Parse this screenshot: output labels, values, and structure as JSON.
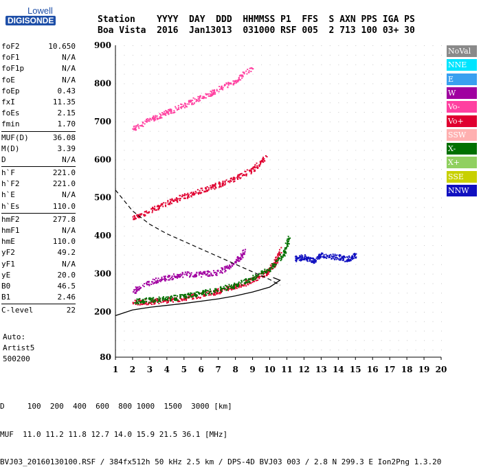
{
  "logo": {
    "line1": "Lowell",
    "line2": "DIGISONDE"
  },
  "header": {
    "labels": [
      "Station",
      "YYYY",
      "DAY",
      "DDD",
      "HHMMSS",
      "P1",
      "FFS",
      "S",
      "AXN",
      "PPS",
      "IGA",
      "PS"
    ],
    "values": [
      "Boa Vista",
      "2016",
      "Jan13",
      "013",
      "031000",
      "RSF",
      "005",
      "2",
      "713",
      "100",
      "03+",
      "30"
    ]
  },
  "params": [
    {
      "name": "foF2",
      "value": "10.650"
    },
    {
      "name": "foF1",
      "value": "N/A"
    },
    {
      "name": "foF1p",
      "value": "N/A"
    },
    {
      "name": "foE",
      "value": "N/A"
    },
    {
      "name": "foEp",
      "value": "0.43"
    },
    {
      "name": "fxI",
      "value": "11.35"
    },
    {
      "name": "foEs",
      "value": "2.15"
    },
    {
      "name": "fmin",
      "value": "1.70"
    },
    {
      "sep": true
    },
    {
      "name": "MUF(D)",
      "value": "36.08"
    },
    {
      "name": "M(D)",
      "value": "3.39"
    },
    {
      "name": "D",
      "value": "N/A"
    },
    {
      "sep": true
    },
    {
      "name": "h`F",
      "value": "221.0"
    },
    {
      "name": "h`F2",
      "value": "221.0"
    },
    {
      "name": "h`E",
      "value": "N/A"
    },
    {
      "name": "h`Es",
      "value": "110.0"
    },
    {
      "sep": true
    },
    {
      "name": "hmF2",
      "value": "277.8"
    },
    {
      "name": "hmF1",
      "value": "N/A"
    },
    {
      "name": "hmE",
      "value": "110.0"
    },
    {
      "name": "yF2",
      "value": "49.2"
    },
    {
      "name": "yF1",
      "value": "N/A"
    },
    {
      "name": "yE",
      "value": "20.0"
    },
    {
      "name": "B0",
      "value": "46.5"
    },
    {
      "name": "B1",
      "value": "2.46"
    },
    {
      "sep": true
    },
    {
      "name": "C-level",
      "value": "22"
    }
  ],
  "autoscaling": {
    "line1": "Auto:",
    "line2": "Artist5",
    "line3": "500200"
  },
  "footer": {
    "d_row": "D     100  200  400  600  800 1000  1500  3000 [km]",
    "muf_row": "MUF  11.0 11.2 11.8 12.7 14.0 15.9 21.5 36.1 [MHz]",
    "info_row": "BVJ03_20160130100.RSF / 384fx512h 50 kHz 2.5 km / DPS-4D BVJ03 003 / 2.8 N 299.3 E Ion2Png 1.3.20"
  },
  "chart_data": {
    "type": "scatter",
    "x_ticks": [
      1,
      2,
      3,
      4,
      5,
      6,
      7,
      8,
      9,
      10,
      11,
      12,
      13,
      14,
      15,
      16,
      17,
      18,
      19,
      20
    ],
    "y_ticks": [
      80,
      200,
      300,
      400,
      500,
      600,
      700,
      800,
      900
    ],
    "xlim": [
      1,
      20
    ],
    "y_segments": [
      [
        80,
        200
      ],
      [
        200,
        900
      ]
    ],
    "legend": [
      {
        "name": "NoVal",
        "color": "#8a8a8a"
      },
      {
        "name": "NNE",
        "color": "#00e5ff"
      },
      {
        "name": "E",
        "color": "#3aa0f0"
      },
      {
        "name": "W",
        "color": "#a000a0"
      },
      {
        "name": "Vo-",
        "color": "#ff40a0"
      },
      {
        "name": "Vo+",
        "color": "#e00030"
      },
      {
        "name": "SSW",
        "color": "#ffb0b0"
      },
      {
        "name": "X-",
        "color": "#007000"
      },
      {
        "name": "X+",
        "color": "#90d060"
      },
      {
        "name": "SSE",
        "color": "#c8d000"
      },
      {
        "name": "NNW",
        "color": "#1010c0"
      }
    ],
    "traces": [
      {
        "series": "Vo+",
        "points": [
          [
            2.0,
            225
          ],
          [
            3,
            228
          ],
          [
            4,
            232
          ],
          [
            5,
            238
          ],
          [
            6,
            246
          ],
          [
            7,
            256
          ],
          [
            8,
            268
          ],
          [
            9,
            285
          ],
          [
            9.8,
            305
          ],
          [
            10.3,
            330
          ],
          [
            10.6,
            365
          ]
        ]
      },
      {
        "series": "X-",
        "points": [
          [
            2.1,
            228
          ],
          [
            3,
            232
          ],
          [
            4,
            236
          ],
          [
            5,
            242
          ],
          [
            6,
            250
          ],
          [
            7,
            260
          ],
          [
            8,
            272
          ],
          [
            9,
            290
          ],
          [
            10,
            315
          ],
          [
            10.8,
            355
          ],
          [
            11.1,
            395
          ]
        ]
      },
      {
        "series": "Vo+",
        "points": [
          [
            2.0,
            448
          ],
          [
            3,
            466
          ],
          [
            4,
            488
          ],
          [
            5,
            505
          ],
          [
            6,
            520
          ],
          [
            7,
            535
          ],
          [
            8,
            552
          ],
          [
            9,
            575
          ],
          [
            9.8,
            610
          ]
        ]
      },
      {
        "series": "Vo-",
        "points": [
          [
            2.0,
            680
          ],
          [
            3,
            705
          ],
          [
            4,
            725
          ],
          [
            5,
            745
          ],
          [
            6,
            765
          ],
          [
            7,
            785
          ],
          [
            8,
            808
          ],
          [
            9,
            845
          ]
        ]
      },
      {
        "series": "NNW",
        "points": [
          [
            11.4,
            340
          ],
          [
            12,
            345
          ],
          [
            12.5,
            335
          ],
          [
            13,
            350
          ],
          [
            14,
            345
          ],
          [
            14.5,
            340
          ],
          [
            15,
            350
          ]
        ]
      },
      {
        "series": "W",
        "points": [
          [
            2,
            255
          ],
          [
            3,
            280
          ],
          [
            4,
            290
          ],
          [
            5,
            300
          ],
          [
            6,
            300
          ],
          [
            7,
            305
          ],
          [
            8,
            330
          ],
          [
            8.5,
            360
          ]
        ]
      }
    ],
    "profile_curve": [
      [
        1,
        190
      ],
      [
        2,
        205
      ],
      [
        3,
        212
      ],
      [
        4,
        217
      ],
      [
        5,
        222
      ],
      [
        6,
        228
      ],
      [
        7,
        234
      ],
      [
        8,
        242
      ],
      [
        9,
        252
      ],
      [
        10,
        265
      ],
      [
        10.6,
        283
      ],
      [
        10.2,
        290
      ]
    ],
    "dashed_curve": [
      [
        1,
        520
      ],
      [
        2,
        465
      ],
      [
        3,
        430
      ],
      [
        4,
        405
      ],
      [
        5,
        385
      ],
      [
        6,
        365
      ],
      [
        7,
        345
      ],
      [
        8,
        325
      ],
      [
        9,
        305
      ],
      [
        10,
        285
      ],
      [
        10.6,
        270
      ]
    ]
  }
}
